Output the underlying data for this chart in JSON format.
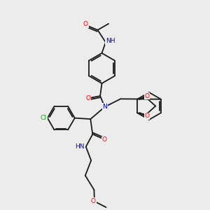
{
  "bg_color": "#ececec",
  "bond_color": "#1a1a1a",
  "atom_colors": {
    "O": "#ff0000",
    "N": "#0000bb",
    "Cl": "#00aa00",
    "C": "#1a1a1a"
  },
  "font_size": 6.5,
  "bond_width": 1.3,
  "figsize": [
    3.0,
    3.0
  ],
  "dpi": 100
}
